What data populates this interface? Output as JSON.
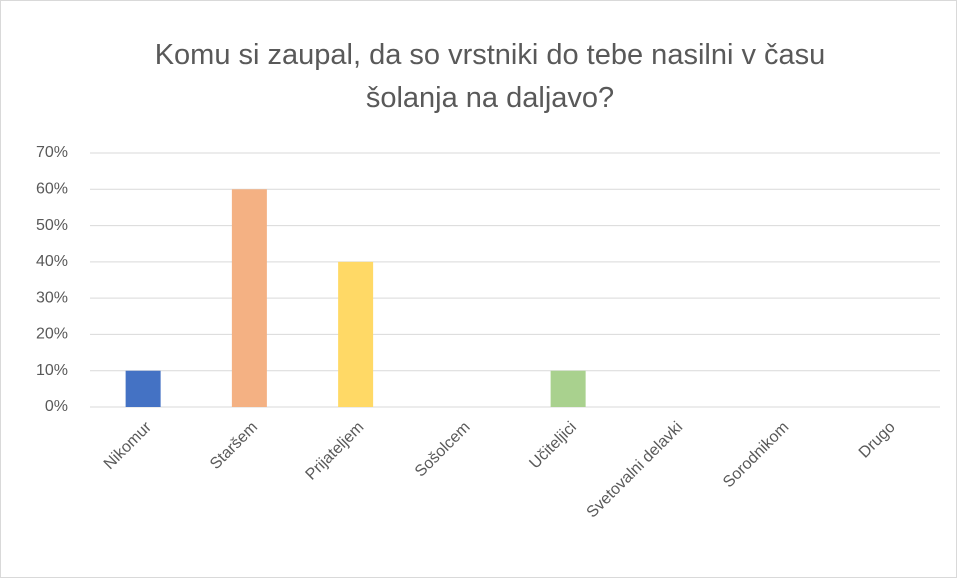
{
  "chart_data": {
    "type": "bar",
    "title": "Komu si zaupal, da so vrstniki do tebe nasilni v času šolanja na daljavo?",
    "categories": [
      "Nikomur",
      "Staršem",
      "Prijateljem",
      "Sošolcem",
      "Učiteljici",
      "Svetovalni delavki",
      "Sorodnikom",
      "Drugo"
    ],
    "values": [
      10,
      60,
      40,
      0,
      10,
      0,
      0,
      0
    ],
    "colors": [
      "#4472c4",
      "#f4b183",
      "#ffd966",
      null,
      "#a9d18e",
      null,
      null,
      null
    ],
    "ylim": [
      0,
      70
    ],
    "yticks": [
      {
        "value": 0,
        "label": "0%"
      },
      {
        "value": 10,
        "label": "10%"
      },
      {
        "value": 20,
        "label": "20%"
      },
      {
        "value": 30,
        "label": "30%"
      },
      {
        "value": 40,
        "label": "40%"
      },
      {
        "value": 50,
        "label": "50%"
      },
      {
        "value": 60,
        "label": "60%"
      },
      {
        "value": 70,
        "label": "70%"
      }
    ],
    "grid": true
  }
}
